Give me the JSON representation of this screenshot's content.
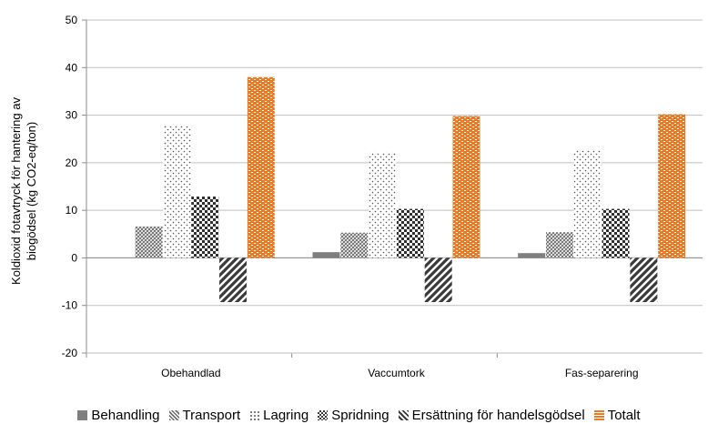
{
  "chart_data": {
    "type": "bar",
    "categories": [
      "Obehandlad",
      "Vaccumtork",
      "Fas-separering"
    ],
    "series": [
      {
        "name": "Behandling",
        "values": [
          0,
          1.2,
          1.0
        ],
        "color": "#7f7f7f"
      },
      {
        "name": "Transport",
        "values": [
          6.6,
          5.3,
          5.4
        ],
        "color": "#a6a6a6"
      },
      {
        "name": "Lagring",
        "values": [
          27.8,
          22.2,
          22.7
        ],
        "color": "#d9d9d9"
      },
      {
        "name": "Spridning",
        "values": [
          12.9,
          10.3,
          10.3
        ],
        "color": "#3a3a3a"
      },
      {
        "name": "Ersättning för handelsgödsel",
        "values": [
          -9.3,
          -9.3,
          -9.3
        ],
        "color": "#404040"
      },
      {
        "name": "Totalt",
        "values": [
          38.0,
          29.8,
          30.2
        ],
        "color": "#e87b26"
      }
    ],
    "ylabel_line1": "Koldioxid fotavtryck för hantering av",
    "ylabel_line2": "biogödsel (kg CO2-eq/ton)",
    "ylim": [
      -20,
      50
    ],
    "yticks": [
      "-20",
      "-10",
      "0",
      "10",
      "20",
      "30",
      "40",
      "50"
    ],
    "grid": true,
    "legend_position": "bottom"
  }
}
